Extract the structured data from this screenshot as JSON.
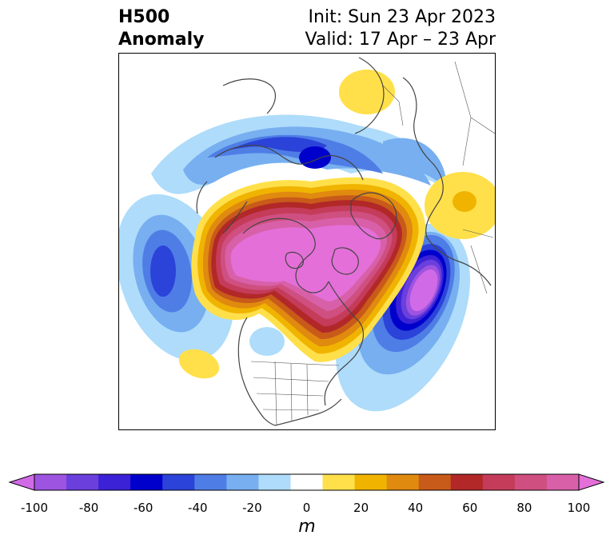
{
  "title": {
    "left_line1": "H500",
    "left_line2": "Anomaly",
    "right_line1": "Init: Sun 23 Apr 2023",
    "right_line2": "Valid: 17 Apr – 23 Apr"
  },
  "map": {
    "projection": "north-polar-stereographic",
    "field": "500 hPa geopotential height anomaly",
    "features": [
      {
        "name": "positive-anomaly-arctic-canada",
        "sign": "positive",
        "peak_m": 100
      },
      {
        "name": "negative-anomaly-western-atlantic",
        "sign": "negative",
        "peak_m": -100
      },
      {
        "name": "negative-anomaly-north-pacific",
        "sign": "negative",
        "peak_m": -60
      },
      {
        "name": "negative-anomaly-siberia-arc",
        "sign": "negative",
        "peak_m": -60
      },
      {
        "name": "positive-anomaly-scandinavia",
        "sign": "positive",
        "peak_m": 20
      },
      {
        "name": "positive-anomaly-east-asia",
        "sign": "positive",
        "peak_m": 30
      },
      {
        "name": "positive-anomaly-eastern-pacific",
        "sign": "positive",
        "peak_m": 20
      }
    ]
  },
  "colorbar": {
    "ticks": [
      "-100",
      "-80",
      "-60",
      "-40",
      "-20",
      "0",
      "20",
      "40",
      "60",
      "80",
      "100"
    ],
    "unit": "m",
    "extend": "both",
    "colors": [
      "#d16ae6",
      "#9d54e0",
      "#6a3fdc",
      "#3b22d6",
      "#0000cc",
      "#2b43d8",
      "#4f7de6",
      "#77aff0",
      "#aedcfa",
      "#ffffff",
      "#ffe04a",
      "#f0b400",
      "#e08a10",
      "#c85a1a",
      "#b22828",
      "#c43c5a",
      "#cf4f80",
      "#d860a8",
      "#e46fd8"
    ]
  }
}
